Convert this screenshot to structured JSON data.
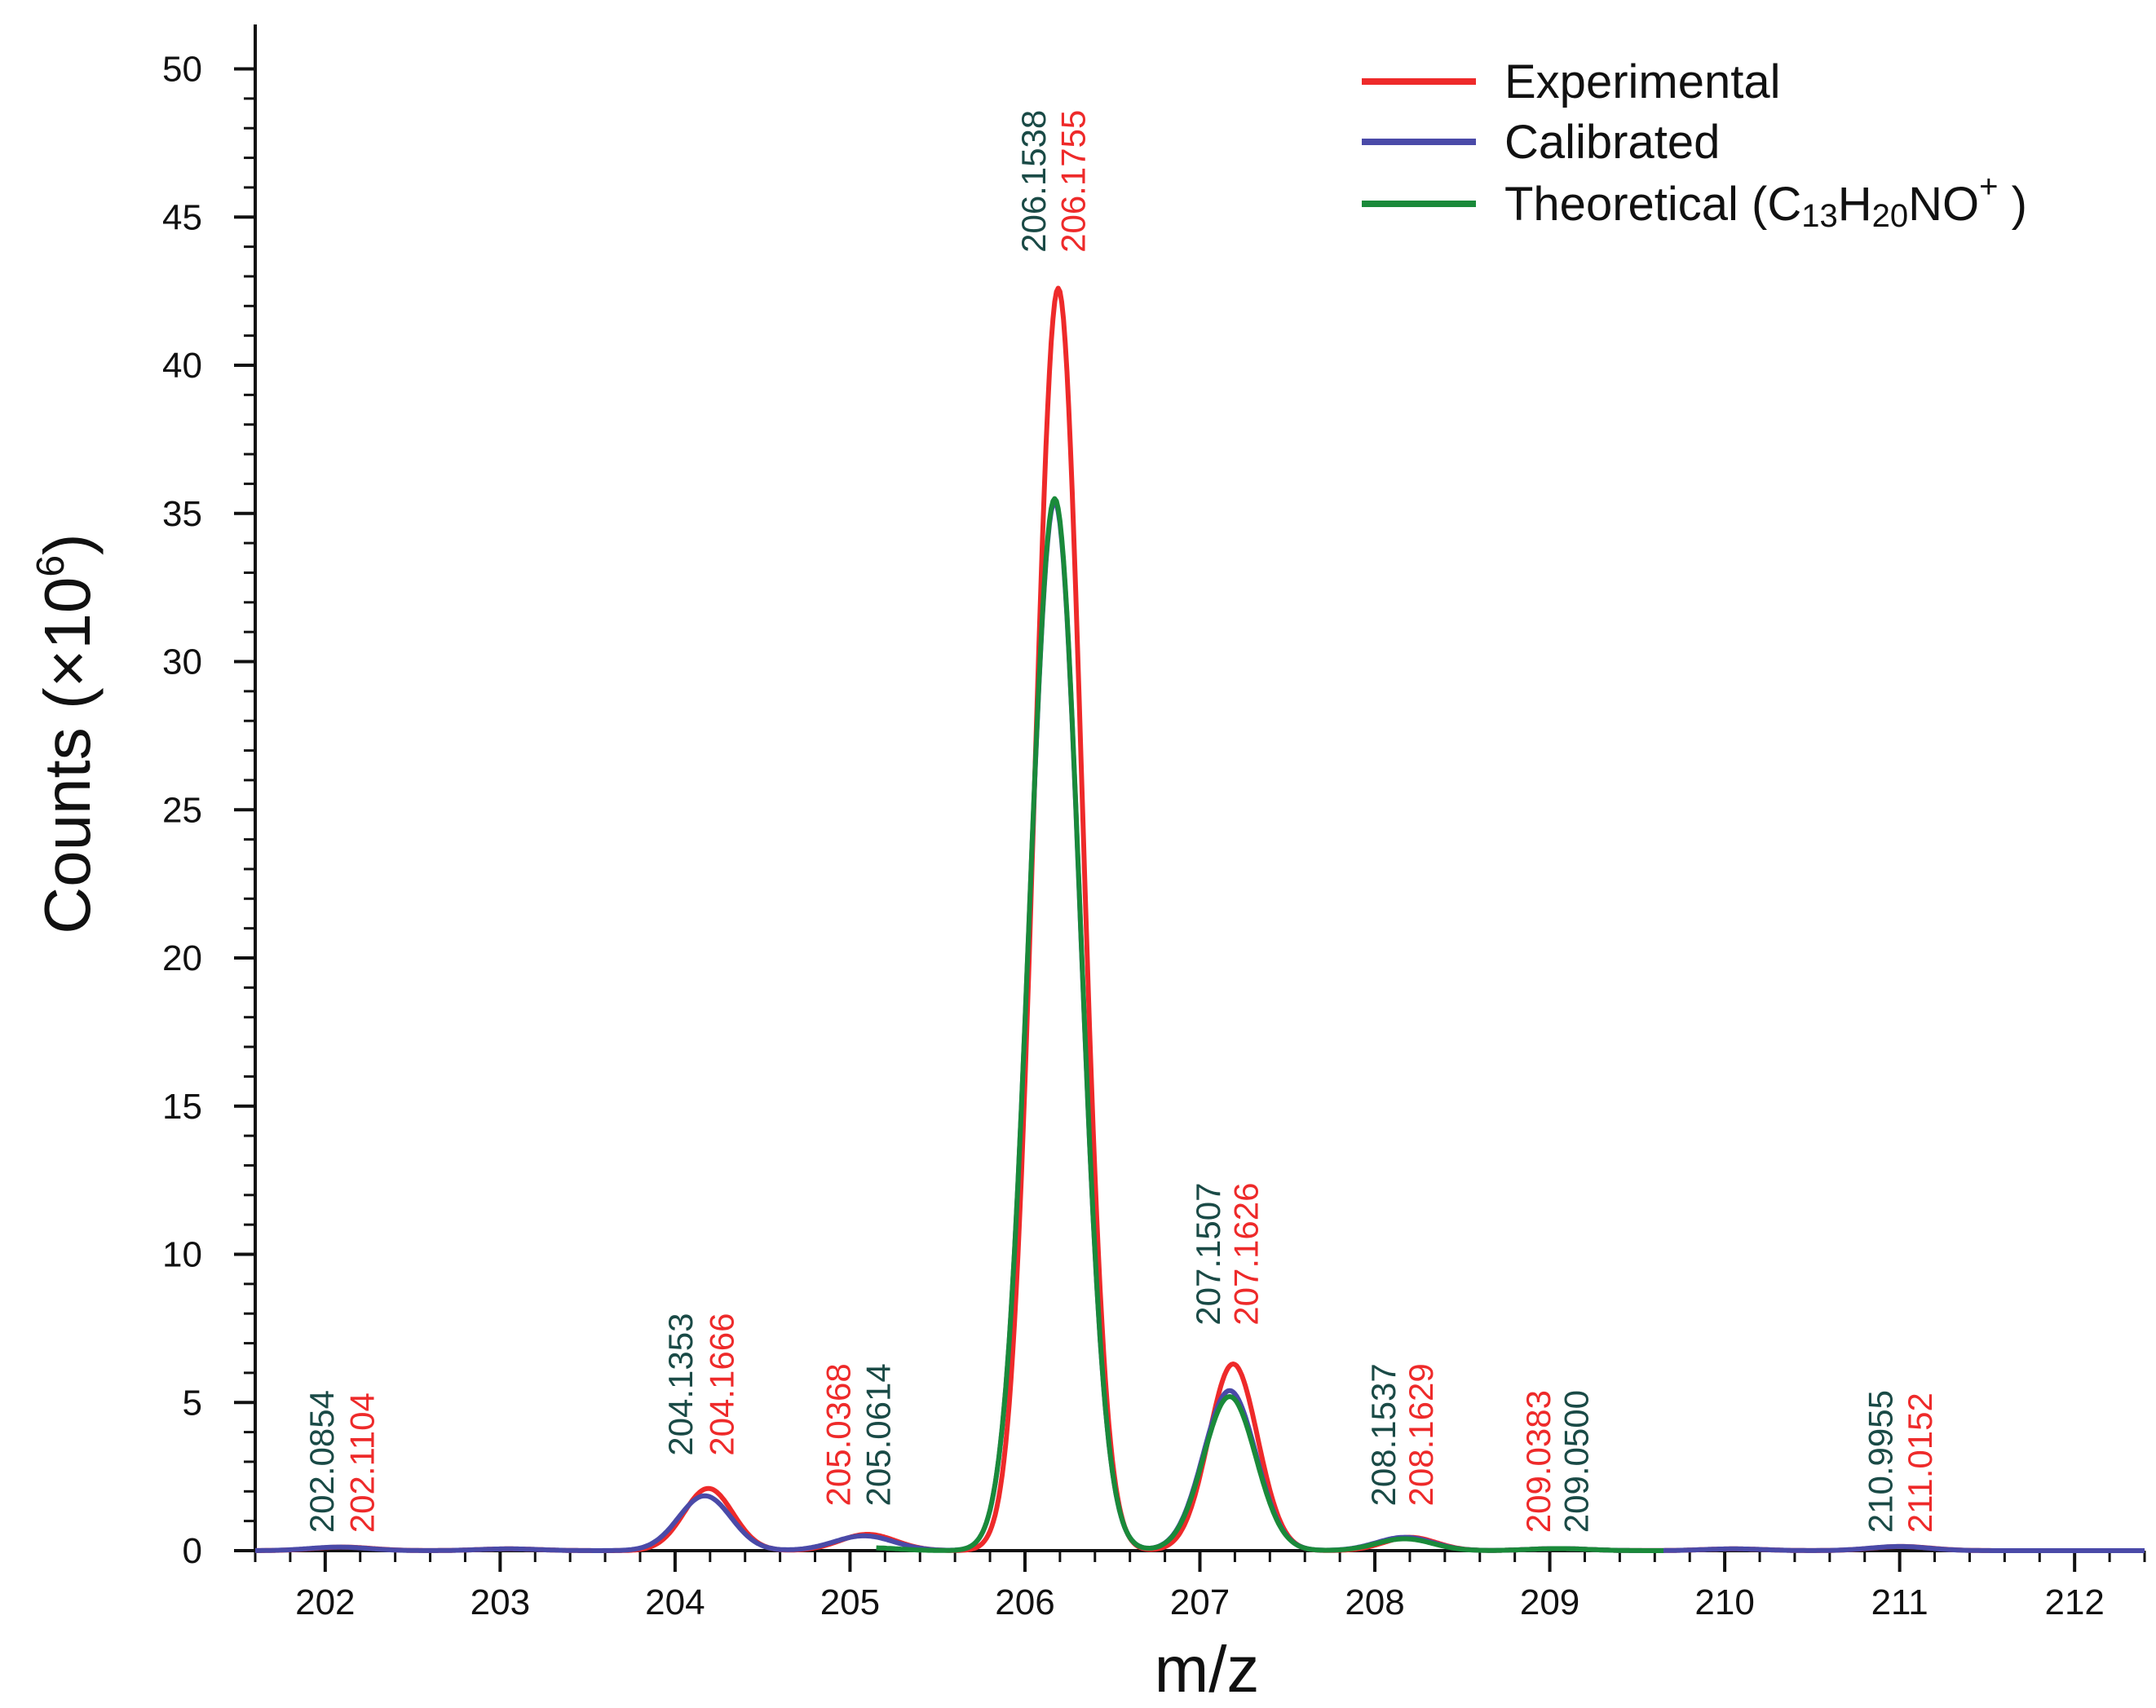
{
  "chart_data": {
    "type": "line",
    "title": "",
    "xlabel": "m/z",
    "ylabel_main": "Counts (×10",
    "ylabel_exp": "6",
    "ylabel_close": ")",
    "xlim": [
      201.6,
      212.4
    ],
    "ylim": [
      0,
      51.5
    ],
    "xticks": [
      202,
      203,
      204,
      205,
      206,
      207,
      208,
      209,
      210,
      211,
      212
    ],
    "yticks": [
      0,
      5,
      10,
      15,
      20,
      25,
      30,
      35,
      40,
      45,
      50
    ],
    "colors": {
      "experimental": "#ee2a2a",
      "calibrated": "#4a4aa8",
      "theoretical": "#1a8a3a",
      "label_teal": "#1a4a46",
      "label_red": "#ee2a2a"
    },
    "legend": {
      "position": "top-right",
      "items": [
        {
          "key": "experimental",
          "label": "Experimental"
        },
        {
          "key": "calibrated",
          "label": "Calibrated"
        },
        {
          "key": "theoretical",
          "label": "Theoretical (C",
          "sub1": "13",
          "mid1": "H",
          "sub2": "20",
          "mid2": "NO",
          "sup": "+",
          "tail": " )"
        }
      ]
    },
    "series": [
      {
        "name": "Experimental",
        "key": "experimental",
        "peaks": [
          {
            "mu": 202.1,
            "h": 0.12,
            "s": 0.17
          },
          {
            "mu": 203.05,
            "h": 0.06,
            "s": 0.17
          },
          {
            "mu": 204.19,
            "h": 2.1,
            "s": 0.14
          },
          {
            "mu": 205.1,
            "h": 0.55,
            "s": 0.16
          },
          {
            "mu": 206.19,
            "h": 42.6,
            "s": 0.135
          },
          {
            "mu": 207.19,
            "h": 6.3,
            "s": 0.14
          },
          {
            "mu": 208.2,
            "h": 0.45,
            "s": 0.15
          },
          {
            "mu": 209.05,
            "h": 0.07,
            "s": 0.17
          },
          {
            "mu": 210.05,
            "h": 0.06,
            "s": 0.17
          },
          {
            "mu": 211.01,
            "h": 0.14,
            "s": 0.17
          }
        ],
        "range": [
          201.6,
          212.4
        ]
      },
      {
        "name": "Calibrated",
        "key": "calibrated",
        "peaks": [
          {
            "mu": 202.08,
            "h": 0.12,
            "s": 0.17
          },
          {
            "mu": 203.05,
            "h": 0.06,
            "s": 0.17
          },
          {
            "mu": 204.17,
            "h": 1.85,
            "s": 0.15
          },
          {
            "mu": 205.08,
            "h": 0.5,
            "s": 0.17
          },
          {
            "mu": 206.17,
            "h": 35.4,
            "s": 0.145
          },
          {
            "mu": 207.17,
            "h": 5.4,
            "s": 0.15
          },
          {
            "mu": 208.17,
            "h": 0.45,
            "s": 0.16
          },
          {
            "mu": 209.05,
            "h": 0.07,
            "s": 0.17
          },
          {
            "mu": 210.05,
            "h": 0.06,
            "s": 0.17
          },
          {
            "mu": 211.0,
            "h": 0.14,
            "s": 0.17
          }
        ],
        "range": [
          201.6,
          212.4
        ]
      },
      {
        "name": "Theoretical (C13H20NO+)",
        "key": "theoretical",
        "peaks": [
          {
            "mu": 205.1,
            "h": 0.1,
            "s": 0.17
          },
          {
            "mu": 206.17,
            "h": 35.5,
            "s": 0.145
          },
          {
            "mu": 207.17,
            "h": 5.2,
            "s": 0.15
          },
          {
            "mu": 208.17,
            "h": 0.4,
            "s": 0.16
          },
          {
            "mu": 209.05,
            "h": 0.07,
            "s": 0.17
          }
        ],
        "range": [
          205.15,
          209.65
        ]
      }
    ],
    "annotations": [
      {
        "x": 202.0854,
        "top": 0.6,
        "side": "left",
        "color": "label_teal",
        "text": "202.0854"
      },
      {
        "x": 202.1104,
        "top": 0.6,
        "side": "right",
        "color": "label_red",
        "text": "202.1104"
      },
      {
        "x": 204.1353,
        "top": 3.2,
        "side": "left",
        "color": "label_teal",
        "text": "204.1353"
      },
      {
        "x": 204.1666,
        "top": 3.2,
        "side": "right",
        "color": "label_red",
        "text": "204.1666"
      },
      {
        "x": 205.0368,
        "top": 1.5,
        "side": "left",
        "color": "label_red",
        "text": "205.0368"
      },
      {
        "x": 205.0614,
        "top": 1.5,
        "side": "right",
        "color": "label_teal",
        "text": "205.0614"
      },
      {
        "x": 206.1538,
        "top": 43.8,
        "side": "left",
        "color": "label_teal",
        "text": "206.1538"
      },
      {
        "x": 206.1755,
        "top": 43.8,
        "side": "right",
        "color": "label_red",
        "text": "206.1755"
      },
      {
        "x": 207.1507,
        "top": 7.6,
        "side": "left",
        "color": "label_teal",
        "text": "207.1507"
      },
      {
        "x": 207.1626,
        "top": 7.6,
        "side": "right",
        "color": "label_red",
        "text": "207.1626"
      },
      {
        "x": 208.1537,
        "top": 1.5,
        "side": "left",
        "color": "label_teal",
        "text": "208.1537"
      },
      {
        "x": 208.1629,
        "top": 1.5,
        "side": "right",
        "color": "label_red",
        "text": "208.1629"
      },
      {
        "x": 209.0383,
        "top": 0.6,
        "side": "left",
        "color": "label_red",
        "text": "209.0383"
      },
      {
        "x": 209.05,
        "top": 0.6,
        "side": "right",
        "color": "label_teal",
        "text": "209.0500"
      },
      {
        "x": 210.9955,
        "top": 0.6,
        "side": "left",
        "color": "label_teal",
        "text": "210.9955"
      },
      {
        "x": 211.0152,
        "top": 0.6,
        "side": "right",
        "color": "label_red",
        "text": "211.0152"
      }
    ]
  }
}
